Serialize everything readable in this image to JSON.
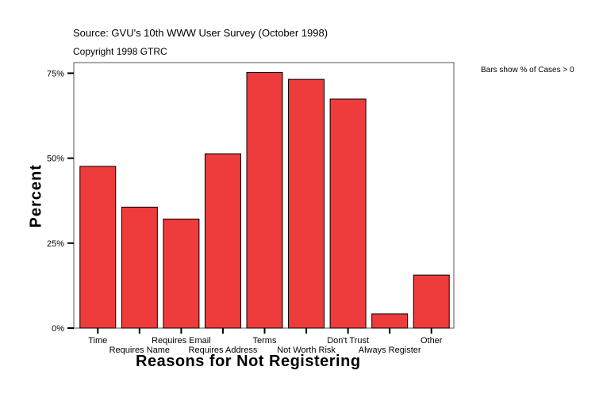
{
  "chart_data": {
    "type": "bar",
    "source": "Source: GVU's 10th WWW User Survey (October 1998)",
    "copyright": "Copyright 1998 GTRC",
    "note": "Bars show % of Cases > 0",
    "xlabel": "Reasons for Not Registering",
    "ylabel": "Percent",
    "categories": [
      "Time",
      "Requires Name",
      "Requires Email",
      "Requires Address",
      "Terms",
      "Not Worth Risk",
      "Don't Trust",
      "Always Register",
      "Other"
    ],
    "values": [
      47.6,
      35.6,
      32.1,
      51.3,
      75.2,
      73.2,
      67.4,
      4.2,
      15.6
    ],
    "yticks": [
      0,
      25,
      50,
      75
    ],
    "ytick_labels": [
      "0%",
      "25%",
      "50%",
      "75%"
    ],
    "ylim": [
      0,
      78
    ],
    "grid": false,
    "bar_color": "#EE3B3B"
  }
}
